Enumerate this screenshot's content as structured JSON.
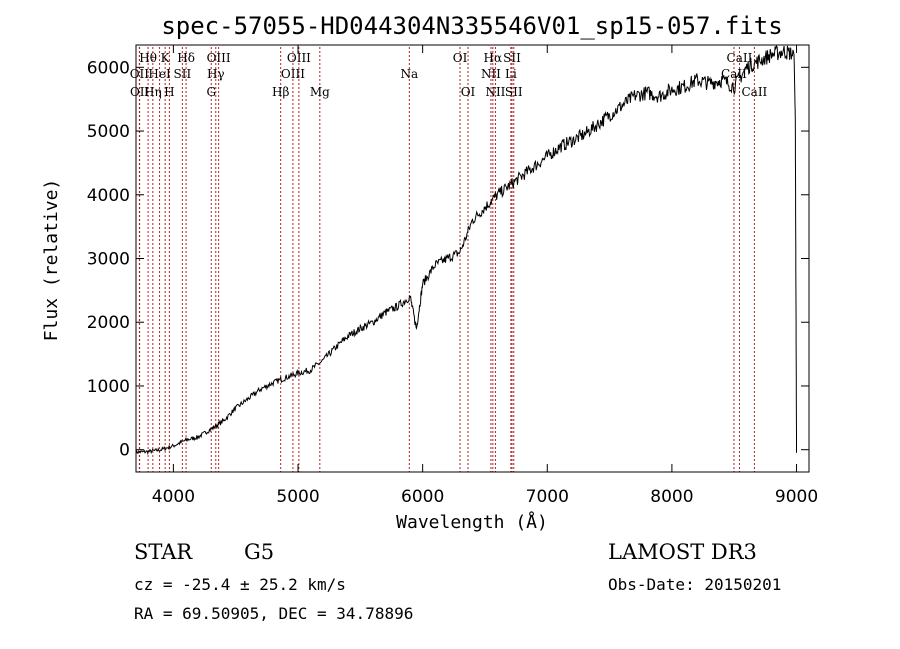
{
  "chart_data": {
    "type": "line",
    "title": "spec-57055-HD044304N335546V01_sp15-057.fits",
    "xlabel": "Wavelength (Å)",
    "ylabel": "Flux (relative)",
    "xlim": [
      3700,
      9100
    ],
    "ylim": [
      -350,
      6350
    ],
    "xticks": [
      4000,
      5000,
      6000,
      7000,
      8000,
      9000
    ],
    "yticks": [
      0,
      1000,
      2000,
      3000,
      4000,
      5000,
      6000
    ],
    "series": [
      {
        "name": "flux",
        "x": [
          3700,
          3800,
          3900,
          4000,
          4100,
          4200,
          4300,
          4400,
          4500,
          4600,
          4700,
          4800,
          4900,
          5000,
          5100,
          5200,
          5300,
          5400,
          5500,
          5600,
          5700,
          5800,
          5900,
          5950,
          6000,
          6100,
          6200,
          6300,
          6400,
          6500,
          6600,
          6700,
          6800,
          6900,
          7000,
          7100,
          7200,
          7300,
          7400,
          7500,
          7600,
          7700,
          7800,
          7900,
          8000,
          8100,
          8200,
          8300,
          8400,
          8500,
          8600,
          8700,
          8800,
          8900,
          8980,
          8990,
          9000
        ],
        "y": [
          -40,
          -30,
          0,
          60,
          150,
          200,
          320,
          450,
          650,
          800,
          950,
          1050,
          1130,
          1200,
          1250,
          1400,
          1600,
          1780,
          1900,
          2000,
          2150,
          2250,
          2400,
          1900,
          2600,
          2900,
          3000,
          3100,
          3600,
          3800,
          4000,
          4150,
          4300,
          4450,
          4600,
          4750,
          4850,
          4950,
          5100,
          5250,
          5400,
          5550,
          5600,
          5550,
          5650,
          5700,
          5800,
          5750,
          5800,
          5700,
          6000,
          6100,
          6200,
          6250,
          6200,
          5200,
          -50
        ]
      }
    ],
    "line_markers": [
      {
        "label": "Hθ",
        "wavelength": 3797,
        "row": 1
      },
      {
        "label": "OII",
        "wavelength": 3727,
        "row": 2
      },
      {
        "label": "OII",
        "wavelength": 3729,
        "row": 3
      },
      {
        "label": "Hη",
        "wavelength": 3835,
        "row": 3
      },
      {
        "label": "HeI",
        "wavelength": 3889,
        "row": 2
      },
      {
        "label": "K",
        "wavelength": 3934,
        "row": 1
      },
      {
        "label": "H",
        "wavelength": 3968,
        "row": 3
      },
      {
        "label": "SII",
        "wavelength": 4072,
        "row": 2
      },
      {
        "label": "Hδ",
        "wavelength": 4102,
        "row": 1
      },
      {
        "label": "OIII",
        "wavelength": 4363,
        "row": 1
      },
      {
        "label": "Hγ",
        "wavelength": 4340,
        "row": 2
      },
      {
        "label": "G",
        "wavelength": 4304,
        "row": 3
      },
      {
        "label": "Hβ",
        "wavelength": 4861,
        "row": 3
      },
      {
        "label": "OIII",
        "wavelength": 4959,
        "row": 2
      },
      {
        "label": "OIII",
        "wavelength": 5007,
        "row": 1
      },
      {
        "label": "Mg",
        "wavelength": 5175,
        "row": 3
      },
      {
        "label": "Na",
        "wavelength": 5893,
        "row": 2
      },
      {
        "label": "OI",
        "wavelength": 6300,
        "row": 1
      },
      {
        "label": "OI",
        "wavelength": 6364,
        "row": 3
      },
      {
        "label": "NII",
        "wavelength": 6548,
        "row": 2
      },
      {
        "label": "Hα",
        "wavelength": 6563,
        "row": 1
      },
      {
        "label": "NII",
        "wavelength": 6584,
        "row": 3
      },
      {
        "label": "SII",
        "wavelength": 6717,
        "row": 1
      },
      {
        "label": "Li",
        "wavelength": 6708,
        "row": 2
      },
      {
        "label": "SII",
        "wavelength": 6731,
        "row": 3
      },
      {
        "label": "CaII",
        "wavelength": 8542,
        "row": 1
      },
      {
        "label": "CaII",
        "wavelength": 8498,
        "row": 2
      },
      {
        "label": "CaII",
        "wavelength": 8662,
        "row": 3
      }
    ]
  },
  "info": {
    "object_class": "STAR",
    "subclass": "G5",
    "survey": "LAMOST DR3",
    "cz": "cz = -25.4 ± 25.2 km/s",
    "obs_date": "Obs-Date: 20150201",
    "coords": "RA =  69.50905, DEC =  34.78896"
  },
  "colors": {
    "axis": "#000000",
    "spectrum": "#000000",
    "marker": "#b22222"
  }
}
